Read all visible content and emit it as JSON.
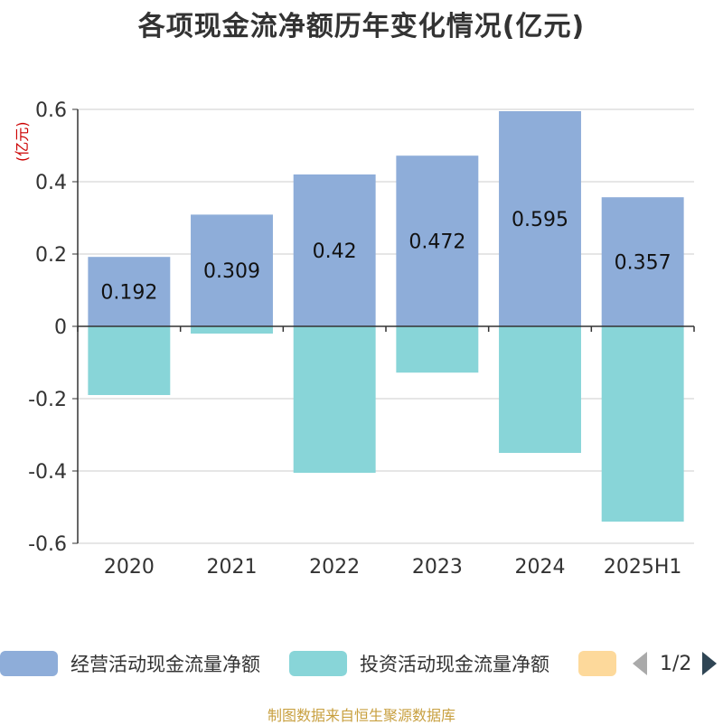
{
  "title": "各项现金流净额历年变化情况(亿元)",
  "unit_label": "(亿元)",
  "source": "制图数据来自恒生聚源数据库",
  "legend": {
    "items": [
      {
        "label": "经营活动现金流量净额",
        "color": "#8eadd9"
      },
      {
        "label": "投资活动现金流量净额",
        "color": "#88d5d8"
      },
      {
        "label": "",
        "color": "#fdd99b"
      }
    ],
    "page_indicator": "1/2"
  },
  "chart_data": {
    "type": "bar",
    "title": "各项现金流净额历年变化情况(亿元)",
    "ylabel": "(亿元)",
    "ylim": [
      -0.6,
      0.6
    ],
    "yticks": [
      0.6,
      0.4,
      0.2,
      0,
      -0.2,
      -0.4,
      -0.6
    ],
    "ytick_labels": [
      "0.6",
      "0.4",
      "0.2",
      "0",
      "-0.2",
      "-0.4",
      "-0.6"
    ],
    "grid": true,
    "legend_position": "bottom",
    "categories": [
      "2020",
      "2021",
      "2022",
      "2023",
      "2024",
      "2025H1"
    ],
    "series": [
      {
        "name": "经营活动现金流量净额",
        "color": "#8eadd9",
        "values": [
          0.192,
          0.309,
          0.42,
          0.472,
          0.595,
          0.357
        ],
        "labels": [
          "0.192",
          "0.309",
          "0.42",
          "0.472",
          "0.595",
          "0.357"
        ]
      },
      {
        "name": "投资活动现金流量净额",
        "color": "#88d5d8",
        "values": [
          -0.19,
          -0.02,
          -0.405,
          -0.128,
          -0.35,
          -0.54
        ]
      }
    ]
  }
}
